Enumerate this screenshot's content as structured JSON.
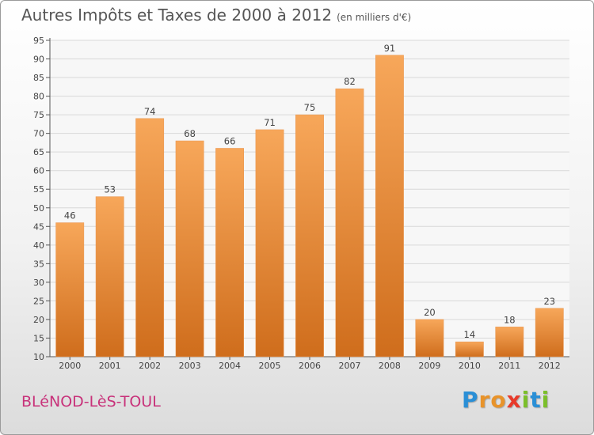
{
  "header": {
    "title": "Autres Impôts et Taxes de 2000 à 2012",
    "unit_note": "(en milliers d'€)"
  },
  "footer": {
    "town": "BLéNOD-LèS-TOUL",
    "logo_letters": [
      "P",
      "r",
      "o",
      "x",
      "i",
      "t",
      "i"
    ],
    "logo_colors": [
      "#2a8fd6",
      "#e8932a",
      "#e8932a",
      "#e83a2a",
      "#7bbf2a",
      "#2a8fd6",
      "#7bbf2a"
    ]
  },
  "colors": {
    "bar_top": "#f7a75a",
    "bar_bottom": "#cf6d1c",
    "axis": "#555555",
    "grid": "#d8d8d8"
  },
  "chart_data": {
    "type": "bar",
    "categories": [
      "2000",
      "2001",
      "2002",
      "2003",
      "2004",
      "2005",
      "2006",
      "2007",
      "2008",
      "2009",
      "2010",
      "2011",
      "2012"
    ],
    "values": [
      46,
      53,
      74,
      68,
      66,
      71,
      75,
      82,
      91,
      20,
      14,
      18,
      23
    ],
    "ylim": [
      10,
      95
    ],
    "yticks": [
      10,
      15,
      20,
      25,
      30,
      35,
      40,
      45,
      50,
      55,
      60,
      65,
      70,
      75,
      80,
      85,
      90,
      95
    ],
    "grid": true,
    "data_labels": true
  }
}
